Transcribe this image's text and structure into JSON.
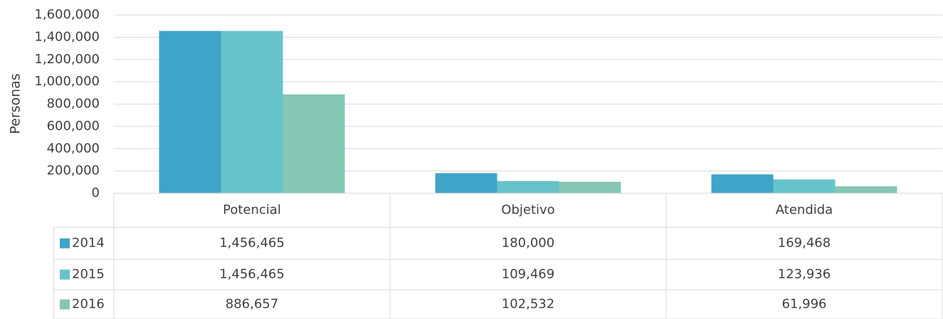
{
  "chart_data": {
    "type": "bar",
    "y_axis_label": "Personas",
    "categories": [
      "Potencial",
      "Objetivo",
      "Atendida"
    ],
    "series": [
      {
        "name": "2014",
        "color": "#3fa4c8",
        "values": [
          1456465,
          180000,
          169468
        ],
        "value_labels": [
          "1,456,465",
          "180,000",
          "169,468"
        ]
      },
      {
        "name": "2015",
        "color": "#67c3cb",
        "values": [
          1456465,
          109469,
          123936
        ],
        "value_labels": [
          "1,456,465",
          "109,469",
          "123,936"
        ]
      },
      {
        "name": "2016",
        "color": "#86c6b4",
        "values": [
          886657,
          102532,
          61996
        ],
        "value_labels": [
          "886,657",
          "102,532",
          "61,996"
        ]
      }
    ],
    "ylim": [
      0,
      1600000
    ],
    "yticks": [
      0,
      {
        "value": 200000,
        "label": "200,000"
      },
      {
        "value": 400000,
        "label": "400,000"
      },
      {
        "value": 600000,
        "label": "600,000"
      },
      {
        "value": 800000,
        "label": "800,000"
      },
      {
        "value": 1000000,
        "label": "1,000,000"
      },
      {
        "value": 1200000,
        "label": "1,200,000"
      },
      {
        "value": 1400000,
        "label": "1,400,000"
      },
      {
        "value": 1600000,
        "label": "1,600,000"
      }
    ],
    "grid": true,
    "data_table": true
  }
}
